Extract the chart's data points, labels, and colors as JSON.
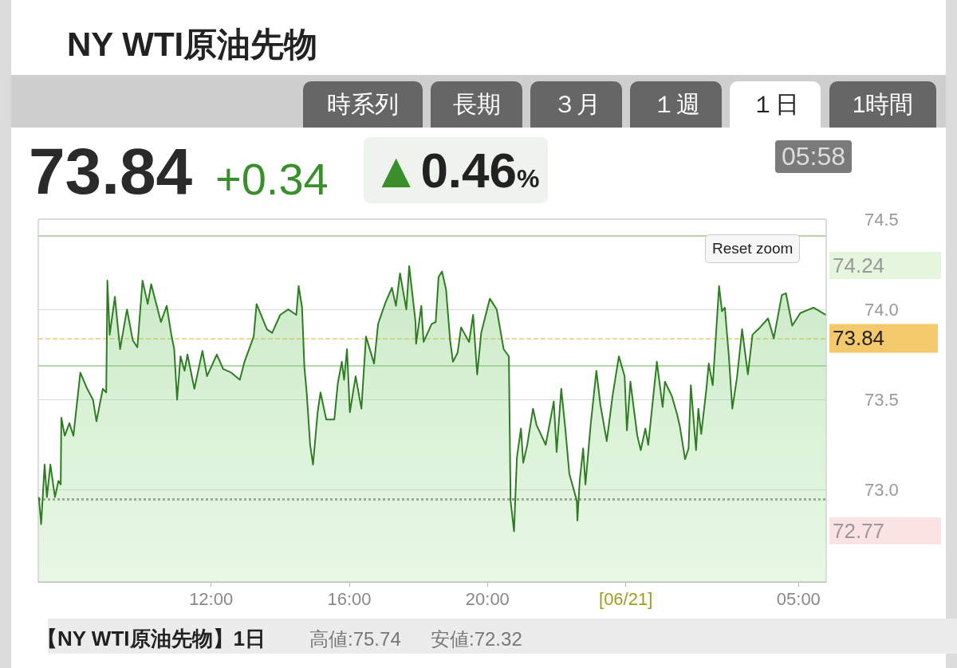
{
  "chart_data": {
    "type": "area",
    "title": "NY WTI原油先物",
    "annotations": [
      "時系列",
      "長期",
      "３月",
      "１週",
      "１日",
      "1時間",
      "73.84",
      "+0.34",
      "▲0.46%",
      "05:58",
      "Reset zoom",
      "【NY WTI原油先物】1日",
      "高値:75.74",
      "安値:72.32",
      "74.24",
      "72.77"
    ],
    "xlim": [
      "--06-20T07:00",
      "--06-21T05:48"
    ],
    "xticks": [
      {
        "value": "--06-20T12:00",
        "label": "12:00"
      },
      {
        "value": "--06-20T16:00",
        "label": "16:00"
      },
      {
        "value": "--06-20T20:00",
        "label": "20:00"
      },
      {
        "value": "--06-21T00:00",
        "label": "[06/21]"
      },
      {
        "value": "--06-21T05:00",
        "label": "05:00"
      }
    ],
    "ylim": [
      72.49,
      74.5
    ],
    "yticks": [
      {
        "value": 73,
        "label": "73.0"
      },
      73.5,
      {
        "value": 74,
        "label": "74.0"
      },
      74.5
    ],
    "grid": "y",
    "marker": "none",
    "line_style": "solid",
    "ref_lines": [
      {
        "axis": "y",
        "value": 74.41,
        "color": "#9cc98c",
        "line_style": "solid"
      },
      {
        "axis": "y",
        "value": 73.69,
        "color": "#9cc98c",
        "line_style": "solid"
      },
      {
        "axis": "y",
        "value": 73.84,
        "color": "#f3c96b",
        "line_style": "dashed",
        "label": "73.84"
      },
      {
        "axis": "y",
        "value": 72.95,
        "color": "#999999",
        "line_style": "dotted"
      }
    ],
    "series": [
      {
        "color": "#2f7d23",
        "x": [
          "--06-20T07:01",
          "--06-20T07:05",
          "--06-20T07:11",
          "--06-20T07:15",
          "--06-20T07:21",
          "--06-20T07:29",
          "--06-20T07:35",
          "--06-20T07:39",
          "--06-20T07:40",
          "--06-20T07:46",
          "--06-20T07:54",
          "--06-20T08:01",
          "--06-20T08:13",
          "--06-20T08:25",
          "--06-20T08:35",
          "--06-20T08:41",
          "--06-20T08:52",
          "--06-20T08:58",
          "--06-20T09:00",
          "--06-20T09:04",
          "--06-20T09:13",
          "--06-20T09:22",
          "--06-20T09:34",
          "--06-20T09:44",
          "--06-20T09:52",
          "--06-20T10:01",
          "--06-20T10:10",
          "--06-20T10:16",
          "--06-20T10:33",
          "--06-20T10:43",
          "--06-20T10:51",
          "--06-20T10:56",
          "--06-20T11:01",
          "--06-20T11:07",
          "--06-20T11:14",
          "--06-20T11:19",
          "--06-20T11:31",
          "--06-20T11:45",
          "--06-20T11:53",
          "--06-20T12:10",
          "--06-20T12:21",
          "--06-20T12:35",
          "--06-20T12:50",
          "--06-20T12:58",
          "--06-20T13:14",
          "--06-20T13:19",
          "--06-20T13:37",
          "--06-20T13:46",
          "--06-20T14:00",
          "--06-20T14:14",
          "--06-20T14:28",
          "--06-20T14:32",
          "--06-20T14:38",
          "--06-20T14:42",
          "--06-20T14:46",
          "--06-20T14:52",
          "--06-20T14:57",
          "--06-20T15:05",
          "--06-20T15:10",
          "--06-20T15:20",
          "--06-20T15:34",
          "--06-20T15:40",
          "--06-20T15:47",
          "--06-20T15:51",
          "--06-20T15:56",
          "--06-20T16:01",
          "--06-20T16:11",
          "--06-20T16:21",
          "--06-20T16:29",
          "--06-20T16:43",
          "--06-20T16:50",
          "--06-20T17:03",
          "--06-20T17:14",
          "--06-20T17:21",
          "--06-20T17:28",
          "--06-20T17:39",
          "--06-20T17:44",
          "--06-20T17:55",
          "--06-20T17:56",
          "--06-20T18:05",
          "--06-20T18:09",
          "--06-20T18:23",
          "--06-20T18:30",
          "--06-20T18:35",
          "--06-20T18:41",
          "--06-20T18:48",
          "--06-20T18:55",
          "--06-20T19:00",
          "--06-20T19:08",
          "--06-20T19:14",
          "--06-20T19:21",
          "--06-20T19:28",
          "--06-20T19:35",
          "--06-20T19:42",
          "--06-20T19:49",
          "--06-20T20:04",
          "--06-20T20:16",
          "--06-20T20:28",
          "--06-20T20:37",
          "--06-20T20:40",
          "--06-20T20:46",
          "--06-20T20:51",
          "--06-20T20:58",
          "--06-20T21:02",
          "--06-20T21:09",
          "--06-20T21:19",
          "--06-20T21:25",
          "--06-20T21:41",
          "--06-20T21:55",
          "--06-20T22:00",
          "--06-20T22:08",
          "--06-20T22:15",
          "--06-20T22:22",
          "--06-20T22:35",
          "--06-20T22:36",
          "--06-20T22:40",
          "--06-20T22:46",
          "--06-20T22:50",
          "--06-20T22:59",
          "--06-20T23:09",
          "--06-20T23:16",
          "--06-20T23:27",
          "--06-20T23:37",
          "--06-20T23:48",
          "--06-20T23:58",
          "--06-21T00:02",
          "--06-21T00:08",
          "--06-21T00:20",
          "--06-21T00:26",
          "--06-21T00:34",
          "--06-21T00:39",
          "--06-21T00:54",
          "--06-21T01:04",
          "--06-21T01:08",
          "--06-21T01:20",
          "--06-21T01:29",
          "--06-21T01:34",
          "--06-21T01:43",
          "--06-21T01:49",
          "--06-21T01:53",
          "--06-21T02:02",
          "--06-21T02:06",
          "--06-21T02:11",
          "--06-21T02:20",
          "--06-21T02:24",
          "--06-21T02:31",
          "--06-21T02:42",
          "--06-21T02:47",
          "--06-21T02:52",
          "--06-21T02:59",
          "--06-21T03:05",
          "--06-21T03:13",
          "--06-21T03:22",
          "--06-21T03:32",
          "--06-21T03:40",
          "--06-21T03:50",
          "--06-21T04:07",
          "--06-21T04:17",
          "--06-21T04:31",
          "--06-21T04:38",
          "--06-21T04:49",
          "--06-21T05:03",
          "--06-21T05:26",
          "--06-21T05:47"
        ],
        "values": [
          72.96,
          72.81,
          73.14,
          72.96,
          73.14,
          72.96,
          73.05,
          73.03,
          73.4,
          73.3,
          73.37,
          73.3,
          73.65,
          73.56,
          73.5,
          73.38,
          73.56,
          73.54,
          74.16,
          73.86,
          74.07,
          73.78,
          74.0,
          73.83,
          73.79,
          74.16,
          74.03,
          74.14,
          73.93,
          74.02,
          73.86,
          73.78,
          73.5,
          73.74,
          73.66,
          73.75,
          73.56,
          73.77,
          73.63,
          73.75,
          73.67,
          73.65,
          73.61,
          73.71,
          73.85,
          74.03,
          73.89,
          73.87,
          73.97,
          74.0,
          73.97,
          74.13,
          74.01,
          73.68,
          73.54,
          73.25,
          73.14,
          73.43,
          73.54,
          73.39,
          73.39,
          73.59,
          73.71,
          73.61,
          73.78,
          73.43,
          73.63,
          73.45,
          73.85,
          73.7,
          73.92,
          74.04,
          74.12,
          74.02,
          74.2,
          74.0,
          74.24,
          73.93,
          73.81,
          74.02,
          73.82,
          73.92,
          73.93,
          74.18,
          74.21,
          74.11,
          73.83,
          73.71,
          73.76,
          73.9,
          73.86,
          73.82,
          73.97,
          73.64,
          73.87,
          74.06,
          74.0,
          73.78,
          73.74,
          72.94,
          72.77,
          73.18,
          73.34,
          73.15,
          73.25,
          73.45,
          73.36,
          73.25,
          73.49,
          73.21,
          73.56,
          73.34,
          73.09,
          72.94,
          72.83,
          73.05,
          73.23,
          73.03,
          73.36,
          73.66,
          73.47,
          73.27,
          73.52,
          73.74,
          73.63,
          73.33,
          73.6,
          73.3,
          73.22,
          73.34,
          73.25,
          73.71,
          73.46,
          73.6,
          73.52,
          73.42,
          73.35,
          73.17,
          73.23,
          73.58,
          73.22,
          73.45,
          73.31,
          73.56,
          73.7,
          73.58,
          74.13,
          73.99,
          74.01,
          73.74,
          73.45,
          73.62,
          73.89,
          73.64,
          73.86,
          73.89,
          73.95,
          73.84,
          74.08,
          74.09,
          73.91,
          73.98,
          74.01,
          73.97
        ]
      }
    ]
  }
}
